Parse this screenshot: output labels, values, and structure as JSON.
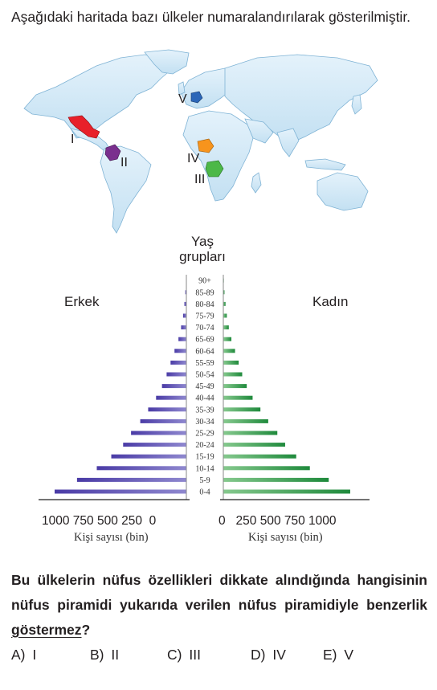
{
  "intro_text": "Aşağıdaki haritada bazı ülkeler numaralandırılarak gösterilmiştir.",
  "map": {
    "labels": [
      "I",
      "II",
      "III",
      "IV",
      "V"
    ],
    "colors": {
      "land": "#cfe8f6",
      "border": "#7fb3d5",
      "I": "#e8202a",
      "II": "#7a2f8e",
      "III": "#4cb848",
      "IV": "#f7941d",
      "V": "#2b66b8"
    }
  },
  "pyramid": {
    "age_axis_title_line1": "Yaş",
    "age_axis_title_line2": "grupları",
    "male_label": "Erkek",
    "female_label": "Kadın",
    "left_ticks": "1000 750 500 250  0",
    "right_ticks": "0   250 500 750 1000",
    "left_axis_caption": "Kişi sayısı (bin)",
    "right_axis_caption": "Kişi sayısı (bin)"
  },
  "chart_data": {
    "type": "bar",
    "orientation": "horizontal-pyramid",
    "categories": [
      "0-4",
      "5-9",
      "10-14",
      "15-19",
      "20-24",
      "25-29",
      "30-34",
      "35-39",
      "40-44",
      "45-49",
      "50-54",
      "55-59",
      "60-64",
      "65-69",
      "70-74",
      "75-79",
      "80-84",
      "85-89",
      "90+"
    ],
    "series": [
      {
        "name": "Erkek",
        "values": [
          1000,
          830,
          680,
          570,
          480,
          420,
          350,
          290,
          230,
          185,
          150,
          120,
          90,
          60,
          40,
          25,
          15,
          8,
          3
        ]
      },
      {
        "name": "Kadın",
        "values": [
          975,
          810,
          665,
          560,
          475,
          415,
          345,
          285,
          225,
          180,
          145,
          118,
          90,
          62,
          42,
          27,
          17,
          9,
          4
        ]
      }
    ],
    "xlim": [
      0,
      1000
    ],
    "colors": {
      "Erkek": "#5b4eb0",
      "Kadın": "#2f9e4f"
    }
  },
  "question": {
    "text_before": "Bu ülkelerin nüfus özellikleri dikkate alındığında hangisinin nüfus piramidi yukarıda verilen nüfus piramidiyle benzerlik ",
    "underlined": "göstermez",
    "text_after": "?"
  },
  "options": [
    {
      "letter": "A)",
      "value": "I"
    },
    {
      "letter": "B)",
      "value": "II"
    },
    {
      "letter": "C)",
      "value": "III"
    },
    {
      "letter": "D)",
      "value": "IV"
    },
    {
      "letter": "E)",
      "value": "V"
    }
  ]
}
